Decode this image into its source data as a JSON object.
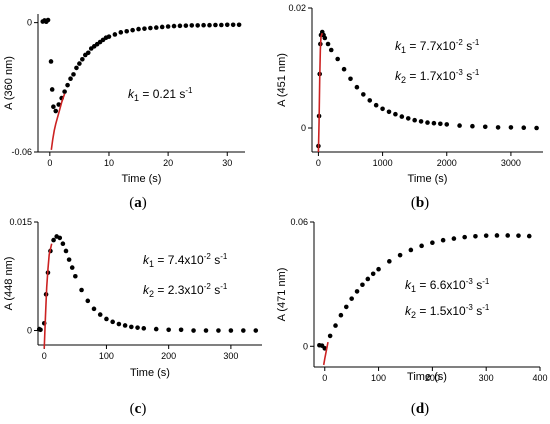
{
  "chart_data": [
    {
      "panel": "a",
      "caption": {
        "open": "(",
        "letter": "a",
        "close": ")"
      },
      "type": "scatter",
      "xlabel": "Time (s)",
      "ylabel": "A (360 nm)",
      "xlim": [
        -2,
        33
      ],
      "ylim": [
        -0.06,
        0.004
      ],
      "x_ticks": [
        {
          "v": 0,
          "label": "0"
        },
        {
          "v": 10,
          "label": "10"
        },
        {
          "v": 20,
          "label": "20"
        },
        {
          "v": 30,
          "label": "30"
        }
      ],
      "y_ticks": [
        {
          "v": -0.06,
          "label": "-0.06"
        },
        {
          "v": 0,
          "label": "0"
        }
      ],
      "annotations": [
        {
          "k": "k",
          "sub": "1",
          "text": " = 0.21 s",
          "sup": "-1"
        }
      ],
      "series": [
        {
          "style": "points",
          "color": "#000000",
          "points": [
            [
              -1.2,
              0.0005
            ],
            [
              -0.9,
              0.001
            ],
            [
              -0.6,
              0.0004
            ],
            [
              -0.3,
              0.0012
            ],
            [
              0.2,
              -0.018
            ],
            [
              0.4,
              -0.031
            ],
            [
              0.6,
              -0.039
            ],
            [
              1,
              -0.041
            ],
            [
              1.5,
              -0.038
            ],
            [
              2,
              -0.035
            ],
            [
              2.5,
              -0.032
            ],
            [
              3,
              -0.029
            ],
            [
              3.5,
              -0.026
            ],
            [
              4,
              -0.024
            ],
            [
              4.5,
              -0.021
            ],
            [
              5,
              -0.019
            ],
            [
              5.5,
              -0.017
            ],
            [
              6,
              -0.015
            ],
            [
              6.5,
              -0.014
            ],
            [
              7,
              -0.012
            ],
            [
              7.5,
              -0.011
            ],
            [
              8,
              -0.01
            ],
            [
              8.5,
              -0.009
            ],
            [
              9,
              -0.008
            ],
            [
              9.5,
              -0.007
            ],
            [
              10,
              -0.0065
            ],
            [
              11,
              -0.0055
            ],
            [
              12,
              -0.0045
            ],
            [
              13,
              -0.004
            ],
            [
              14,
              -0.0035
            ],
            [
              15,
              -0.003
            ],
            [
              16,
              -0.0028
            ],
            [
              17,
              -0.0025
            ],
            [
              18,
              -0.0023
            ],
            [
              19,
              -0.002
            ],
            [
              20,
              -0.0018
            ],
            [
              21,
              -0.0016
            ],
            [
              22,
              -0.0015
            ],
            [
              23,
              -0.0014
            ],
            [
              24,
              -0.0013
            ],
            [
              25,
              -0.0013
            ],
            [
              26,
              -0.0012
            ],
            [
              27,
              -0.0012
            ],
            [
              28,
              -0.0011
            ],
            [
              29,
              -0.0011
            ],
            [
              30,
              -0.001
            ],
            [
              31,
              -0.001
            ],
            [
              32,
              -0.001
            ]
          ]
        },
        {
          "style": "line",
          "color": "#cc2222",
          "points": [
            [
              0.25,
              -0.059
            ],
            [
              0.5,
              -0.054
            ],
            [
              0.75,
              -0.05
            ],
            [
              1,
              -0.047
            ],
            [
              1.5,
              -0.042
            ],
            [
              2,
              -0.037
            ],
            [
              2.5,
              -0.033
            ]
          ]
        }
      ]
    },
    {
      "panel": "b",
      "caption": {
        "open": "(",
        "letter": "b",
        "close": ")"
      },
      "type": "scatter",
      "xlabel": "Time (s)",
      "ylabel": "A (451 nm)",
      "xlim": [
        -100,
        3500
      ],
      "ylim": [
        -0.004,
        0.02
      ],
      "x_ticks": [
        {
          "v": 0,
          "label": "0"
        },
        {
          "v": 1000,
          "label": "1000"
        },
        {
          "v": 2000,
          "label": "2000"
        },
        {
          "v": 3000,
          "label": "3000"
        }
      ],
      "y_ticks": [
        {
          "v": 0,
          "label": "0"
        },
        {
          "v": 0.02,
          "label": "0.02"
        }
      ],
      "annotations": [
        {
          "k": "k",
          "sub": "1",
          "text": " = 7.7x10",
          "sup": "-2",
          "text2": " s",
          "sup2": "-1"
        },
        {
          "k": "k",
          "sub": "2",
          "text": " = 1.7x10",
          "sup": "-3",
          "text2": " s",
          "sup2": "-1"
        }
      ],
      "series": [
        {
          "style": "points",
          "color": "#000000",
          "points": [
            [
              0,
              -0.003
            ],
            [
              10,
              0.002
            ],
            [
              20,
              0.009
            ],
            [
              30,
              0.014
            ],
            [
              40,
              0.0155
            ],
            [
              60,
              0.016
            ],
            [
              80,
              0.0155
            ],
            [
              100,
              0.015
            ],
            [
              150,
              0.014
            ],
            [
              200,
              0.013
            ],
            [
              300,
              0.0115
            ],
            [
              400,
              0.0098
            ],
            [
              500,
              0.0082
            ],
            [
              600,
              0.0068
            ],
            [
              700,
              0.0056
            ],
            [
              800,
              0.0046
            ],
            [
              900,
              0.0038
            ],
            [
              1000,
              0.0032
            ],
            [
              1100,
              0.0027
            ],
            [
              1200,
              0.0023
            ],
            [
              1300,
              0.0019
            ],
            [
              1400,
              0.0016
            ],
            [
              1500,
              0.0013
            ],
            [
              1600,
              0.0011
            ],
            [
              1700,
              0.0009
            ],
            [
              1800,
              0.0008
            ],
            [
              1900,
              0.0007
            ],
            [
              2000,
              0.0006
            ],
            [
              2200,
              0.0004
            ],
            [
              2400,
              0.0003
            ],
            [
              2600,
              0.0002
            ],
            [
              2800,
              0.0001
            ],
            [
              3000,
              0.0001
            ],
            [
              3200,
              5e-05
            ],
            [
              3400,
              0
            ]
          ]
        },
        {
          "style": "line",
          "color": "#cc2222",
          "points": [
            [
              0,
              -0.004
            ],
            [
              10,
              0.001
            ],
            [
              20,
              0.008
            ],
            [
              30,
              0.013
            ],
            [
              40,
              0.0152
            ],
            [
              60,
              0.0158
            ]
          ]
        }
      ]
    },
    {
      "panel": "c",
      "caption": {
        "open": "(",
        "letter": "c",
        "close": ")"
      },
      "type": "scatter",
      "xlabel": "Time (s)",
      "ylabel": "A (448 nm)",
      "xlim": [
        -10,
        350
      ],
      "ylim": [
        -0.002,
        0.015
      ],
      "x_ticks": [
        {
          "v": 0,
          "label": "0"
        },
        {
          "v": 100,
          "label": "100"
        },
        {
          "v": 200,
          "label": "200"
        },
        {
          "v": 300,
          "label": "300"
        }
      ],
      "y_ticks": [
        {
          "v": 0,
          "label": "0"
        },
        {
          "v": 0.015,
          "label": "0.015"
        }
      ],
      "annotations": [
        {
          "k": "k",
          "sub": "1",
          "text": " = 7.4x10",
          "sup": "-2",
          "text2": " s",
          "sup2": "-1"
        },
        {
          "k": "k",
          "sub": "2",
          "text": " = 2.3x10",
          "sup": "-2",
          "text2": " s",
          "sup2": "-1"
        }
      ],
      "series": [
        {
          "style": "points",
          "color": "#000000",
          "points": [
            [
              -8,
              0.0002
            ],
            [
              -6,
              0.0001
            ],
            [
              0,
              0.001
            ],
            [
              3,
              0.005
            ],
            [
              6,
              0.008
            ],
            [
              10,
              0.011
            ],
            [
              15,
              0.0125
            ],
            [
              20,
              0.013
            ],
            [
              25,
              0.0128
            ],
            [
              30,
              0.012
            ],
            [
              35,
              0.011
            ],
            [
              40,
              0.0098
            ],
            [
              45,
              0.0087
            ],
            [
              50,
              0.0075
            ],
            [
              60,
              0.0056
            ],
            [
              70,
              0.0041
            ],
            [
              80,
              0.003
            ],
            [
              90,
              0.0022
            ],
            [
              100,
              0.0016
            ],
            [
              110,
              0.0012
            ],
            [
              120,
              0.0009
            ],
            [
              130,
              0.0007
            ],
            [
              140,
              0.0005
            ],
            [
              150,
              0.0004
            ],
            [
              160,
              0.0003
            ],
            [
              180,
              0.0002
            ],
            [
              200,
              0.0001
            ],
            [
              220,
              0.0001
            ],
            [
              240,
              0
            ],
            [
              260,
              0
            ],
            [
              280,
              0
            ],
            [
              300,
              0
            ],
            [
              320,
              0
            ],
            [
              340,
              0
            ]
          ]
        },
        {
          "style": "line",
          "color": "#cc2222",
          "points": [
            [
              0,
              -0.0025
            ],
            [
              2,
              0.002
            ],
            [
              4,
              0.006
            ],
            [
              6,
              0.0085
            ],
            [
              8,
              0.0105
            ],
            [
              12,
              0.012
            ]
          ]
        }
      ]
    },
    {
      "panel": "d",
      "caption": {
        "open": "(",
        "letter": "d",
        "close": ")"
      },
      "type": "scatter",
      "xlabel": "Time (s)",
      "ylabel": "A (471 nm)",
      "xlim": [
        -20,
        400
      ],
      "ylim": [
        -0.01,
        0.06
      ],
      "x_ticks": [
        {
          "v": 0,
          "label": "0"
        },
        {
          "v": 100,
          "label": "100"
        },
        {
          "v": 200,
          "label": "200"
        },
        {
          "v": 300,
          "label": "300"
        },
        {
          "v": 400,
          "label": "400"
        }
      ],
      "y_ticks": [
        {
          "v": 0,
          "label": "0"
        },
        {
          "v": 0.06,
          "label": "0.06"
        }
      ],
      "annotations": [
        {
          "k": "k",
          "sub": "1",
          "text": " = 6.6x10",
          "sup": "-3",
          "text2": " s",
          "sup2": "-1"
        },
        {
          "k": "k",
          "sub": "2",
          "text": " = 1.5x10",
          "sup": "-3",
          "text2": " s",
          "sup2": "-1"
        }
      ],
      "series": [
        {
          "style": "points",
          "color": "#000000",
          "points": [
            [
              -10,
              0.0005
            ],
            [
              -5,
              0.0003
            ],
            [
              0,
              -0.001
            ],
            [
              10,
              0.005
            ],
            [
              20,
              0.01
            ],
            [
              30,
              0.015
            ],
            [
              40,
              0.019
            ],
            [
              50,
              0.023
            ],
            [
              60,
              0.0265
            ],
            [
              70,
              0.0297
            ],
            [
              80,
              0.0325
            ],
            [
              90,
              0.035
            ],
            [
              100,
              0.0372
            ],
            [
              120,
              0.041
            ],
            [
              140,
              0.044
            ],
            [
              160,
              0.0465
            ],
            [
              180,
              0.0485
            ],
            [
              200,
              0.05
            ],
            [
              220,
              0.0512
            ],
            [
              240,
              0.052
            ],
            [
              260,
              0.0527
            ],
            [
              280,
              0.0531
            ],
            [
              300,
              0.0534
            ],
            [
              320,
              0.0535
            ],
            [
              340,
              0.0535
            ],
            [
              360,
              0.0534
            ],
            [
              380,
              0.0532
            ]
          ]
        },
        {
          "style": "line",
          "color": "#cc2222",
          "points": [
            [
              -2,
              -0.009
            ],
            [
              0,
              -0.006
            ],
            [
              3,
              -0.002
            ],
            [
              6,
              0.002
            ]
          ]
        }
      ]
    }
  ]
}
